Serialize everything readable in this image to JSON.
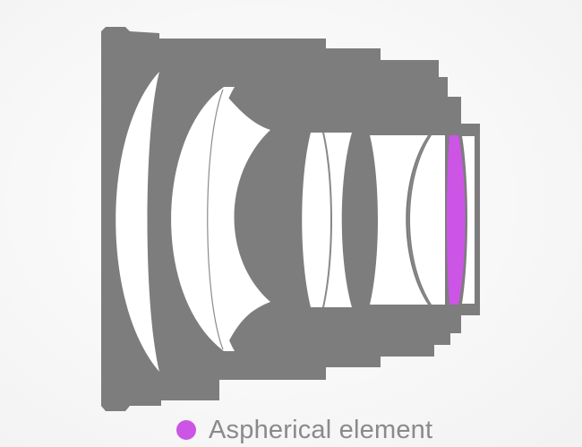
{
  "legend": {
    "label": "Aspherical element",
    "swatch_color": "#cc55e6"
  },
  "colors": {
    "barrel": "#7d7d7d",
    "barrel_outline": "#6f6f6f",
    "lens_glass": "#ffffff",
    "lens_edge": "#8c8c8c",
    "aspherical": "#cc55e6",
    "label": "#8a8a8a"
  },
  "lens_groups": [
    {
      "name": "front-meniscus",
      "aspherical": false
    },
    {
      "name": "second-group-doublet",
      "aspherical": false
    },
    {
      "name": "middle-doublet",
      "aspherical": false
    },
    {
      "name": "rear-doublet",
      "aspherical": false
    },
    {
      "name": "aspherical-rear-element",
      "aspherical": true
    }
  ]
}
